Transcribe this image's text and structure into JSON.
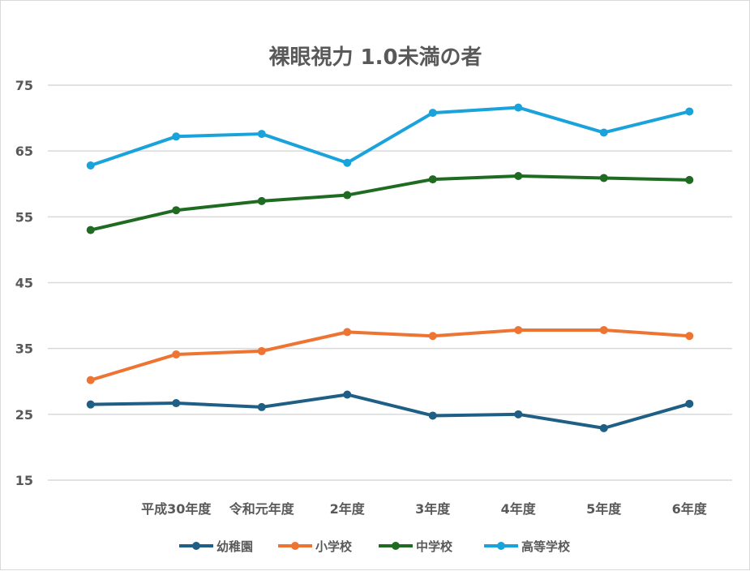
{
  "chart_data": {
    "type": "line",
    "title": "裸眼視力 1.0未満の者",
    "xlabel": "",
    "ylabel": "",
    "categories": [
      "",
      "平成30年度",
      "令和元年度",
      "2年度",
      "3年度",
      "4年度",
      "5年度",
      "6年度"
    ],
    "ylim": [
      15,
      75
    ],
    "yticks": [
      15,
      25,
      35,
      45,
      55,
      65,
      75
    ],
    "grid": true,
    "legend_position": "bottom",
    "series": [
      {
        "name": "幼稚園",
        "color": "#1f5f86",
        "values": [
          26.5,
          26.7,
          26.1,
          28.0,
          24.8,
          25.0,
          22.9,
          26.6
        ]
      },
      {
        "name": "小学校",
        "color": "#ed7432",
        "values": [
          30.2,
          34.1,
          34.6,
          37.5,
          36.9,
          37.8,
          37.8,
          36.9
        ]
      },
      {
        "name": "中学校",
        "color": "#1f6b21",
        "values": [
          53.0,
          56.0,
          57.4,
          58.3,
          60.7,
          61.2,
          60.9,
          60.6
        ]
      },
      {
        "name": "高等学校",
        "color": "#1aa3db",
        "values": [
          62.8,
          67.2,
          67.6,
          63.2,
          70.8,
          71.6,
          67.8,
          71.0
        ]
      }
    ]
  }
}
